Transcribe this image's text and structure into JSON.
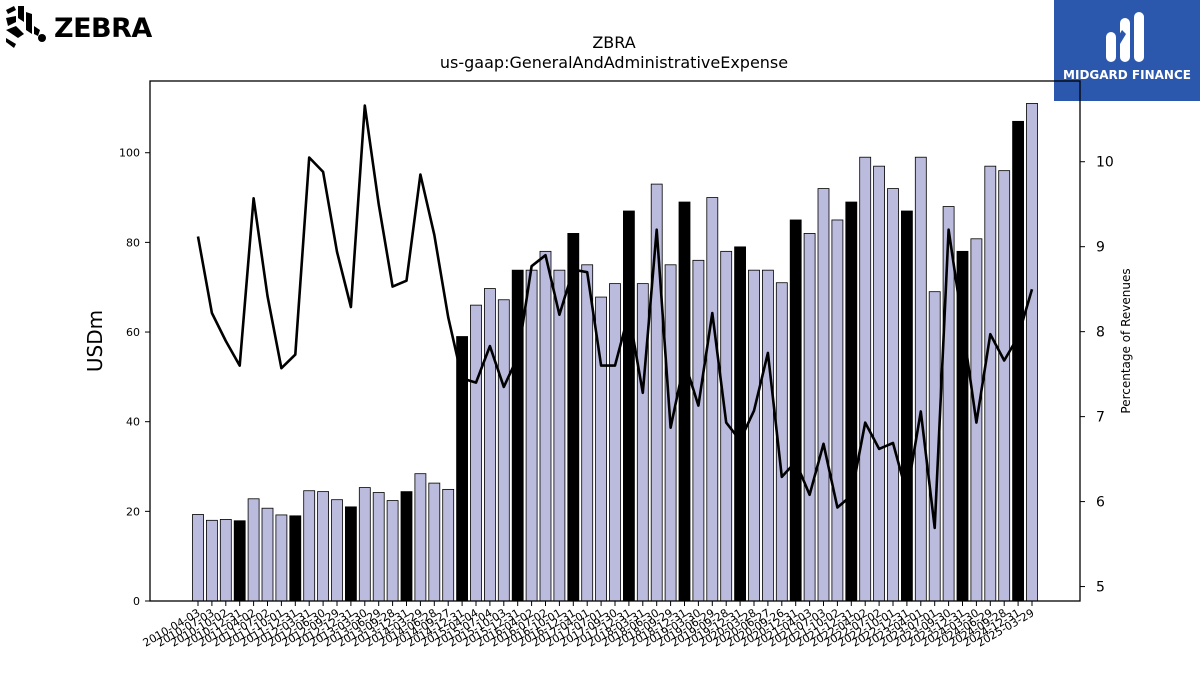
{
  "logos": {
    "left_brand": "ZEBRA",
    "right_brand": "MIDGARD FINANCE"
  },
  "colors": {
    "bar_default": "#bbbbdd",
    "bar_highlight": "#000000",
    "line": "#000000",
    "right_logo_bg": "#2b58ad"
  },
  "chart_data": {
    "type": "bar",
    "title": "ZBRA",
    "subtitle": "us-gaap:GeneralAndAdministrativeExpense",
    "ylabel": "USDm",
    "y2label": "Percentage of Revenues",
    "ylim": [
      0,
      116
    ],
    "y2lim": [
      4.83,
      10.95
    ],
    "yticks": [
      0,
      20,
      40,
      60,
      80,
      100
    ],
    "y2ticks": [
      5,
      6,
      7,
      8,
      9,
      10
    ],
    "grid": false,
    "categories": [
      "2010-04-03",
      "2010-07-03",
      "2010-10-02",
      "2010-12-31",
      "2011-04-02",
      "2011-07-02",
      "2011-10-01",
      "2011-12-31",
      "2012-03-31",
      "2012-06-30",
      "2012-09-29",
      "2012-12-31",
      "2013-03-30",
      "2013-06-29",
      "2013-09-28",
      "2013-12-31",
      "2014-03-29",
      "2014-06-28",
      "2014-09-27",
      "2014-12-31",
      "2015-04-04",
      "2015-07-04",
      "2015-10-03",
      "2015-12-31",
      "2016-04-02",
      "2016-07-02",
      "2016-10-01",
      "2016-12-31",
      "2017-04-01",
      "2017-07-01",
      "2017-09-30",
      "2017-12-31",
      "2018-03-31",
      "2018-06-30",
      "2018-09-29",
      "2018-12-31",
      "2019-03-30",
      "2019-06-29",
      "2019-09-28",
      "2019-12-31",
      "2020-03-28",
      "2020-06-27",
      "2020-09-26",
      "2020-12-31",
      "2021-04-03",
      "2021-07-03",
      "2021-10-02",
      "2021-12-31",
      "2022-04-02",
      "2022-07-02",
      "2022-10-01",
      "2022-12-31",
      "2023-04-01",
      "2023-07-01",
      "2023-09-30",
      "2023-12-31",
      "2024-03-30",
      "2024-06-29",
      "2024-09-28",
      "2024-12-31",
      "2025-03-29"
    ],
    "tick_labels_visible": [
      "2010-04-03",
      "2010-07-03",
      "2010-10-02",
      "2010-12-31",
      "2011-04-02",
      "2011-07-02",
      "2011-10-01",
      "2011-12-31",
      "2012-03-31",
      "2012-06-30",
      "2012-09-29",
      "2012-12-31",
      "2013-03-30",
      "2013-06-29",
      "2013-09-28",
      "2013-12-31",
      "2014-03-29",
      "2014-06-28",
      "2014-09-27",
      "2014-12-31",
      "2015-04-04",
      "2015-07-04",
      "2015-10-03",
      "2015-12-31",
      "2016-04-02",
      "2016-07-02",
      "2016-10-01",
      "2016-12-31",
      "2017-04-01",
      "2017-07-01",
      "2017-09-30",
      "2017-12-31",
      "2018-03-31",
      "2018-06-30",
      "2018-09-29",
      "2018-12-31",
      "2019-03-30",
      "2019-06-29",
      "2019-09-28",
      "2019-12-31",
      "2020-03-28",
      "2020-06-27",
      "2020-09-26",
      "2020-12-31",
      "2021-04-03",
      "2021-07-03",
      "2021-10-02",
      "2021-12-31",
      "2022-04-02",
      "2022-07-02",
      "2022-10-01",
      "2022-12-31",
      "2023-04-01",
      "2023-07-01",
      "2023-09-30",
      "2023-12-31",
      "2024-03-30",
      "2024-06-29",
      "2024-09-28",
      "2024-12-31",
      "2025-03-29"
    ],
    "series": [
      {
        "kind": "bar",
        "axis": "left",
        "values": [
          19.3,
          18.0,
          18.2,
          17.9,
          22.8,
          20.7,
          19.2,
          19.0,
          24.6,
          24.4,
          22.6,
          21.0,
          25.3,
          24.2,
          22.4,
          24.4,
          28.4,
          26.3,
          24.9,
          59.0,
          66.0,
          69.7,
          67.2,
          73.8,
          73.8,
          78.0,
          73.8,
          82.0,
          75.0,
          67.8,
          70.8,
          87.0,
          70.8,
          93.0,
          75.0,
          89.0,
          76.0,
          90.0,
          78.0,
          79.0,
          73.8,
          73.8,
          71.0,
          85.0,
          82.0,
          92.0,
          85.0,
          89.0,
          99.0,
          97.0,
          92.0,
          87.0,
          99.0,
          69.0,
          88.0,
          78.0,
          80.8,
          97.0,
          96.0,
          107.0,
          111.0
        ],
        "highlight": [
          false,
          false,
          false,
          true,
          false,
          false,
          false,
          true,
          false,
          false,
          false,
          true,
          false,
          false,
          false,
          true,
          false,
          false,
          false,
          true,
          false,
          false,
          false,
          true,
          false,
          false,
          false,
          true,
          false,
          false,
          false,
          true,
          false,
          false,
          false,
          true,
          false,
          false,
          false,
          true,
          false,
          false,
          false,
          true,
          false,
          false,
          false,
          true,
          false,
          false,
          false,
          true,
          false,
          false,
          false,
          true,
          false,
          false,
          false,
          true,
          false
        ]
      },
      {
        "kind": "line",
        "axis": "right",
        "values": [
          9.12,
          8.22,
          7.89,
          7.6,
          9.57,
          8.42,
          7.57,
          7.73,
          10.05,
          9.88,
          8.94,
          8.29,
          10.66,
          9.5,
          8.53,
          8.6,
          9.85,
          9.14,
          8.17,
          7.45,
          7.4,
          7.83,
          7.35,
          7.7,
          8.77,
          8.9,
          8.2,
          8.73,
          8.7,
          7.6,
          7.6,
          8.22,
          7.28,
          9.2,
          6.87,
          7.65,
          7.13,
          8.22,
          6.93,
          6.72,
          7.07,
          7.75,
          6.29,
          6.47,
          6.08,
          6.68,
          5.93,
          6.07,
          6.93,
          6.62,
          6.69,
          6.09,
          7.06,
          5.69,
          9.2,
          8.09,
          6.93,
          7.97,
          7.66,
          7.94,
          8.5
        ]
      }
    ]
  }
}
